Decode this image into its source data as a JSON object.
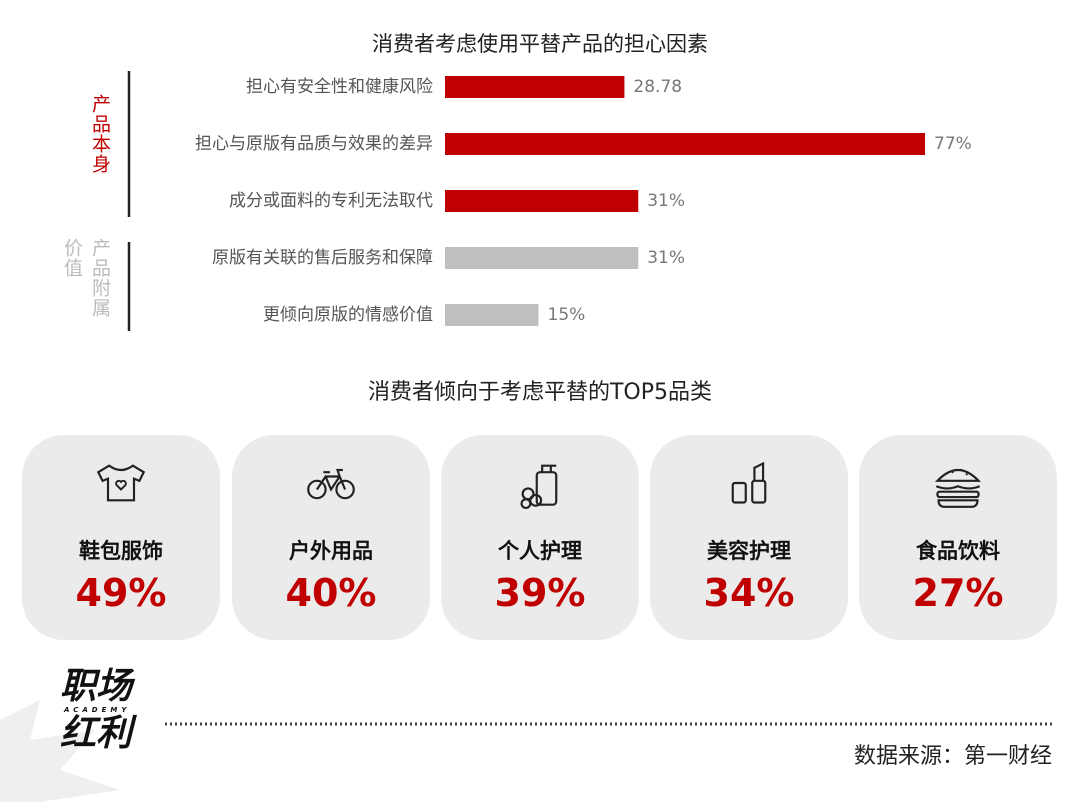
{
  "chart_data": {
    "type": "bar",
    "orientation": "horizontal",
    "title": "消费者考虑使用平替产品的担心因素",
    "groups": [
      {
        "label": "产品本身",
        "color": "#c00000",
        "categories": [
          "担心有安全性和健康风险",
          "担心与原版有品质与效果的差异",
          "成分或面料的专利无法取代"
        ],
        "values": [
          28.78,
          77,
          31
        ],
        "value_labels": [
          "28.78",
          "77%",
          "31%"
        ]
      },
      {
        "label": "产品附属价值",
        "color": "#bfbfbf",
        "categories": [
          "原版有关联的售后服务和保障",
          "更倾向原版的情感价值"
        ],
        "values": [
          31,
          15
        ],
        "value_labels": [
          "31%",
          "15%"
        ]
      }
    ]
  },
  "top5": {
    "title": "消费者倾向于考虑平替的TOP5品类",
    "items": [
      {
        "name": "鞋包服饰",
        "share": "49%"
      },
      {
        "name": "户外用品",
        "share": "40%"
      },
      {
        "name": "个人护理",
        "share": "39%"
      },
      {
        "name": "美容护理",
        "share": "34%"
      },
      {
        "name": "食品饮料",
        "share": "27%"
      }
    ]
  },
  "brand": {
    "line1": "职场",
    "tagline": "ACADEMY",
    "line2": "红利"
  },
  "source": "数据来源：第一财经"
}
